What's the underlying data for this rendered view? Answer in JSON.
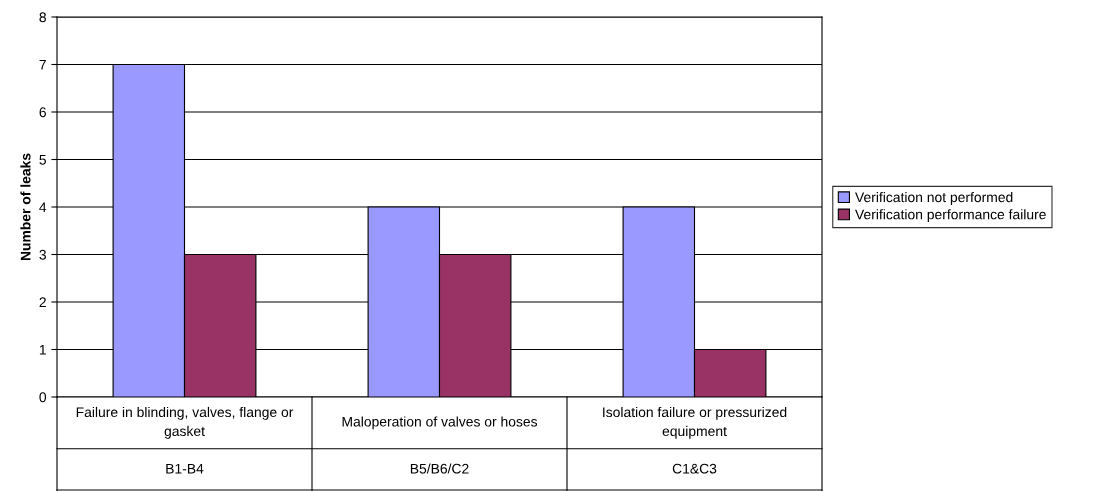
{
  "chart_data": {
    "type": "bar",
    "ylabel": "Number of leaks",
    "categories": [
      "Failure in blinding, valves, flange or gasket\nB1-B4",
      "Maloperation of valves or hoses\nB5/B6/C2",
      "Isolation failure or pressurized equipment\nC1&C3"
    ],
    "series": [
      {
        "name": "Verification not performed",
        "color": "#9999ff",
        "values": [
          7,
          4,
          4
        ]
      },
      {
        "name": "Verification performance failure",
        "color": "#993366",
        "values": [
          3,
          3,
          1
        ]
      }
    ],
    "ylim": [
      0,
      8
    ],
    "yticks": [
      0,
      1,
      2,
      3,
      4,
      5,
      6,
      7,
      8
    ],
    "grid": "y",
    "legend": "right"
  }
}
